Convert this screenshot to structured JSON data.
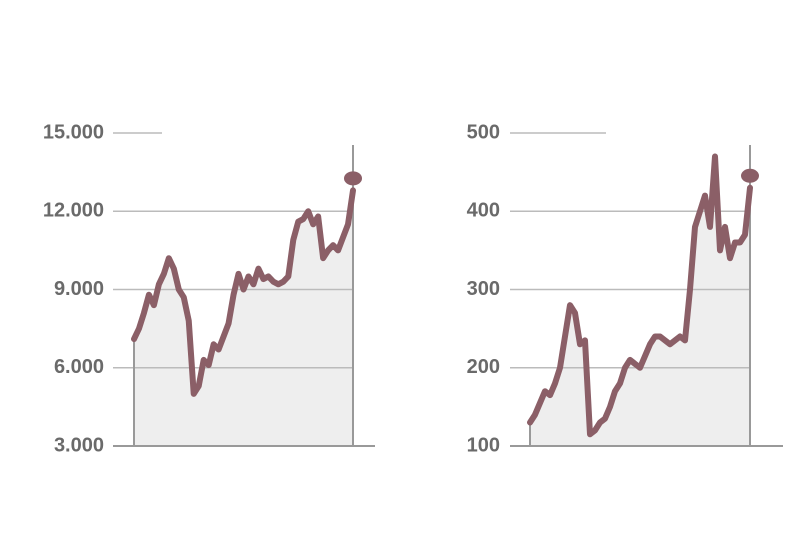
{
  "chart_data": [
    {
      "type": "line",
      "color": "#8b5f67",
      "area_color": "#eeeeee",
      "grid": true,
      "categories": [
        null,
        null,
        null,
        null,
        null,
        null,
        null,
        null,
        null,
        null,
        null,
        null,
        null,
        null,
        null,
        null,
        null,
        null,
        null,
        null,
        null,
        null,
        null,
        null,
        null,
        null,
        null,
        null,
        null,
        null,
        null,
        null,
        null,
        null,
        null,
        null,
        null,
        null,
        null,
        null,
        null,
        null,
        null,
        null,
        null
      ],
      "values": [
        7100,
        7500,
        8100,
        8800,
        8400,
        9200,
        9600,
        10200,
        9800,
        9000,
        8700,
        7800,
        5000,
        5300,
        6300,
        6100,
        6900,
        6700,
        7200,
        7700,
        8800,
        9600,
        9000,
        9500,
        9200,
        9800,
        9400,
        9500,
        9300,
        9200,
        9300,
        9500,
        10900,
        11600,
        11700,
        12000,
        11500,
        11800,
        10200,
        10500,
        10700,
        10500,
        11000,
        11500,
        12800
      ],
      "ylim": [
        3000,
        15000
      ],
      "yticks": [
        {
          "value": 3000,
          "label": "3.000"
        },
        {
          "value": 6000,
          "label": "6.000"
        },
        {
          "value": 9000,
          "label": "9.000"
        },
        {
          "value": 12000,
          "label": "12.000"
        },
        {
          "value": 15000,
          "label": "15.000"
        }
      ]
    },
    {
      "type": "line",
      "color": "#8b5f67",
      "area_color": "#eeeeee",
      "grid": true,
      "categories": [
        null,
        null,
        null,
        null,
        null,
        null,
        null,
        null,
        null,
        null,
        null,
        null,
        null,
        null,
        null,
        null,
        null,
        null,
        null,
        null,
        null,
        null,
        null,
        null,
        null,
        null,
        null,
        null,
        null,
        null,
        null,
        null,
        null,
        null,
        null,
        null,
        null,
        null,
        null,
        null,
        null,
        null,
        null,
        null,
        null
      ],
      "values": [
        130,
        140,
        155,
        170,
        165,
        180,
        200,
        240,
        280,
        270,
        230,
        235,
        115,
        120,
        130,
        135,
        150,
        170,
        180,
        200,
        210,
        205,
        200,
        215,
        230,
        240,
        240,
        235,
        230,
        235,
        240,
        235,
        300,
        380,
        400,
        420,
        380,
        470,
        350,
        380,
        340,
        360,
        360,
        370,
        430
      ],
      "ylim": [
        100,
        500
      ],
      "yticks": [
        100,
        200,
        300,
        400,
        500
      ]
    }
  ]
}
